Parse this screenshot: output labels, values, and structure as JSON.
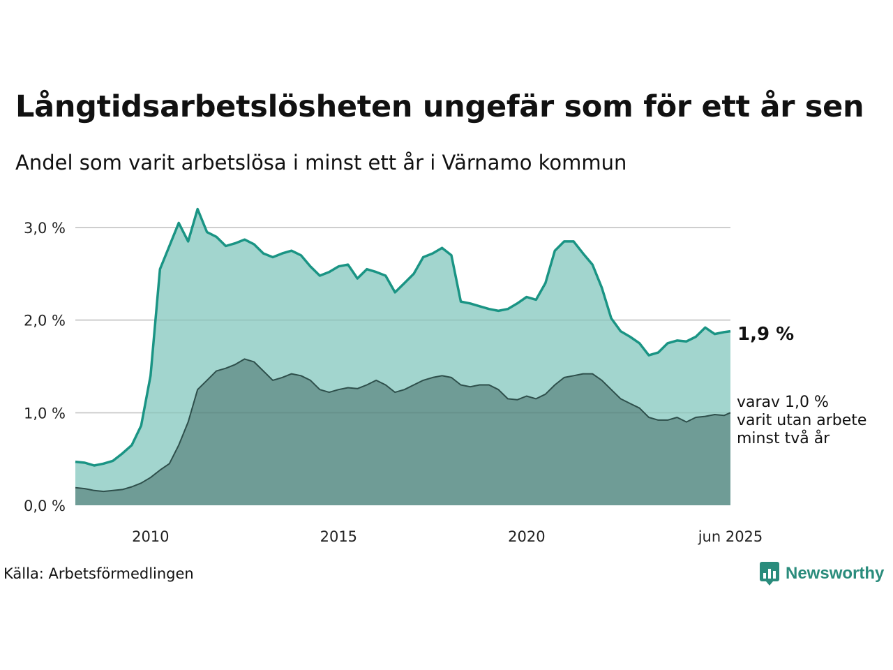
{
  "title": "Långtidsarbetslösheten ungefär som för ett år sen",
  "subtitle": "Andel som varit arbetslösa i minst ett år i Värnamo kommun",
  "source": "Källa: Arbetsförmedlingen",
  "logo": {
    "text": "Newsworthy",
    "icon": "newsworthy-chart-icon"
  },
  "colors": {
    "series_total": "#1a9484",
    "area_total": "#a2d5ce",
    "series_two_years": "#2e4f4b",
    "area_two_years": "#6f9c96"
  },
  "chart_data": {
    "type": "area",
    "ylim": [
      0,
      3.0
    ],
    "xlim": [
      2008.0,
      2025.42
    ],
    "y_ticks": [
      {
        "value": 0,
        "label": "0,0 %"
      },
      {
        "value": 1,
        "label": "1,0 %"
      },
      {
        "value": 2,
        "label": "2,0 %"
      },
      {
        "value": 3,
        "label": "3,0 %"
      }
    ],
    "x_ticks": [
      {
        "value": 2010,
        "label": "2010"
      },
      {
        "value": 2015,
        "label": "2015"
      },
      {
        "value": 2020,
        "label": "2020"
      },
      {
        "value": 2025.42,
        "label": "jun 2025"
      }
    ],
    "grid": true,
    "annotations": {
      "total_label": "1,9 %",
      "two_year_label": [
        "varav 1,0 %",
        "varit utan arbete",
        "minst två år"
      ]
    },
    "series": [
      {
        "x": [
          2008.0,
          2008.25,
          2008.5,
          2008.75,
          2009.0,
          2009.25,
          2009.5,
          2009.75,
          2010.0,
          2010.25,
          2010.5,
          2010.75,
          2011.0,
          2011.25,
          2011.5,
          2011.75,
          2012.0,
          2012.25,
          2012.5,
          2012.75,
          2013.0,
          2013.25,
          2013.5,
          2013.75,
          2014.0,
          2014.25,
          2014.5,
          2014.75,
          2015.0,
          2015.25,
          2015.5,
          2015.75,
          2016.0,
          2016.25,
          2016.5,
          2016.75,
          2017.0,
          2017.25,
          2017.5,
          2017.75,
          2018.0,
          2018.25,
          2018.5,
          2018.75,
          2019.0,
          2019.25,
          2019.5,
          2019.75,
          2020.0,
          2020.25,
          2020.5,
          2020.75,
          2021.0,
          2021.25,
          2021.5,
          2021.75,
          2022.0,
          2022.25,
          2022.5,
          2022.75,
          2023.0,
          2023.25,
          2023.5,
          2023.75,
          2024.0,
          2024.25,
          2024.5,
          2024.75,
          2025.0,
          2025.25,
          2025.42
        ],
        "y": [
          0.47,
          0.46,
          0.43,
          0.45,
          0.48,
          0.56,
          0.65,
          0.86,
          1.4,
          2.55,
          2.8,
          3.05,
          2.85,
          3.2,
          2.95,
          2.9,
          2.8,
          2.83,
          2.87,
          2.82,
          2.72,
          2.68,
          2.72,
          2.75,
          2.7,
          2.58,
          2.48,
          2.52,
          2.58,
          2.6,
          2.45,
          2.55,
          2.52,
          2.48,
          2.3,
          2.4,
          2.5,
          2.68,
          2.72,
          2.78,
          2.7,
          2.2,
          2.18,
          2.15,
          2.12,
          2.1,
          2.12,
          2.18,
          2.25,
          2.22,
          2.4,
          2.75,
          2.85,
          2.85,
          2.72,
          2.6,
          2.35,
          2.02,
          1.88,
          1.82,
          1.75,
          1.62,
          1.65,
          1.75,
          1.78,
          1.77,
          1.82,
          1.92,
          1.85,
          1.87,
          1.88
        ]
      },
      {
        "x": [
          2008.0,
          2008.25,
          2008.5,
          2008.75,
          2009.0,
          2009.25,
          2009.5,
          2009.75,
          2010.0,
          2010.25,
          2010.5,
          2010.75,
          2011.0,
          2011.25,
          2011.5,
          2011.75,
          2012.0,
          2012.25,
          2012.5,
          2012.75,
          2013.0,
          2013.25,
          2013.5,
          2013.75,
          2014.0,
          2014.25,
          2014.5,
          2014.75,
          2015.0,
          2015.25,
          2015.5,
          2015.75,
          2016.0,
          2016.25,
          2016.5,
          2016.75,
          2017.0,
          2017.25,
          2017.5,
          2017.75,
          2018.0,
          2018.25,
          2018.5,
          2018.75,
          2019.0,
          2019.25,
          2019.5,
          2019.75,
          2020.0,
          2020.25,
          2020.5,
          2020.75,
          2021.0,
          2021.25,
          2021.5,
          2021.75,
          2022.0,
          2022.25,
          2022.5,
          2022.75,
          2023.0,
          2023.25,
          2023.5,
          2023.75,
          2024.0,
          2024.25,
          2024.5,
          2024.75,
          2025.0,
          2025.25,
          2025.42
        ],
        "y": [
          0.19,
          0.18,
          0.16,
          0.15,
          0.16,
          0.17,
          0.2,
          0.24,
          0.3,
          0.38,
          0.45,
          0.65,
          0.9,
          1.25,
          1.35,
          1.45,
          1.48,
          1.52,
          1.58,
          1.55,
          1.45,
          1.35,
          1.38,
          1.42,
          1.4,
          1.35,
          1.25,
          1.22,
          1.25,
          1.27,
          1.26,
          1.3,
          1.35,
          1.3,
          1.22,
          1.25,
          1.3,
          1.35,
          1.38,
          1.4,
          1.38,
          1.3,
          1.28,
          1.3,
          1.3,
          1.25,
          1.15,
          1.14,
          1.18,
          1.15,
          1.2,
          1.3,
          1.38,
          1.4,
          1.42,
          1.42,
          1.35,
          1.25,
          1.15,
          1.1,
          1.05,
          0.95,
          0.92,
          0.92,
          0.95,
          0.9,
          0.95,
          0.96,
          0.98,
          0.97,
          1.0
        ]
      }
    ]
  }
}
